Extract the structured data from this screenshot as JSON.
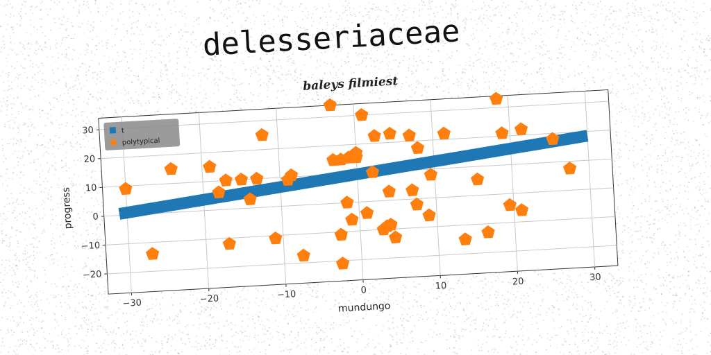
{
  "header": {
    "title": "delesseriaceae"
  },
  "chart_data": {
    "type": "scatter",
    "title": "baleys filmiest",
    "xlabel": "mundungo",
    "ylabel": "progress",
    "xlim": [
      -33,
      33
    ],
    "ylim": [
      -27,
      34
    ],
    "xticks": [
      "−30",
      "−20",
      "−10",
      "0",
      "10",
      "20",
      "30"
    ],
    "xtick_values": [
      -30,
      -20,
      -10,
      0,
      10,
      20,
      30
    ],
    "yticks": [
      "−20",
      "−10",
      "0",
      "10",
      "20",
      "30"
    ],
    "ytick_values": [
      -20,
      -10,
      0,
      10,
      20,
      30
    ],
    "grid": true,
    "legend_position": "upper-left",
    "series": [
      {
        "name": "t",
        "kind": "line",
        "color": "#1f77b4",
        "points": [
          [
            -31,
            0.5
          ],
          [
            30,
            18.5
          ]
        ]
      },
      {
        "name": "polytypical",
        "kind": "scatter",
        "marker": "pentagon",
        "color": "#ff7f0e",
        "points": [
          [
            -30,
            9
          ],
          [
            -27,
            -14
          ],
          [
            -24,
            15
          ],
          [
            -19,
            15
          ],
          [
            -18,
            6
          ],
          [
            -17,
            10
          ],
          [
            -17,
            -12
          ],
          [
            -15,
            10
          ],
          [
            -14,
            3
          ],
          [
            -13,
            10
          ],
          [
            -12,
            25
          ],
          [
            -11,
            -11
          ],
          [
            -9,
            9
          ],
          [
            -8.5,
            10.5
          ],
          [
            -7.5,
            -17.5
          ],
          [
            -3,
            34
          ],
          [
            -3,
            15
          ],
          [
            -2.5,
            -11
          ],
          [
            -2.5,
            -21
          ],
          [
            -2,
            15
          ],
          [
            -1.5,
            0
          ],
          [
            -1,
            -6
          ],
          [
            -1,
            15.5
          ],
          [
            0,
            17
          ],
          [
            0,
            15.5
          ],
          [
            1,
            -4
          ],
          [
            1,
            30
          ],
          [
            2,
            10
          ],
          [
            2.5,
            22.5
          ],
          [
            3,
            -10
          ],
          [
            3.5,
            -9
          ],
          [
            4,
            -8.5
          ],
          [
            4,
            3
          ],
          [
            4.5,
            -13
          ],
          [
            4.5,
            23
          ],
          [
            7,
            3
          ],
          [
            7,
            22
          ],
          [
            7.5,
            -2
          ],
          [
            8,
            17.5
          ],
          [
            9,
            -6
          ],
          [
            9.5,
            8
          ],
          [
            11.5,
            22
          ],
          [
            13.5,
            -15
          ],
          [
            15.5,
            5.5
          ],
          [
            16.5,
            -13
          ],
          [
            18.5,
            33
          ],
          [
            19,
            21
          ],
          [
            19.5,
            -4
          ],
          [
            21,
            -6
          ],
          [
            21.5,
            22
          ],
          [
            25.5,
            18
          ],
          [
            27.5,
            7.5
          ]
        ]
      }
    ]
  }
}
